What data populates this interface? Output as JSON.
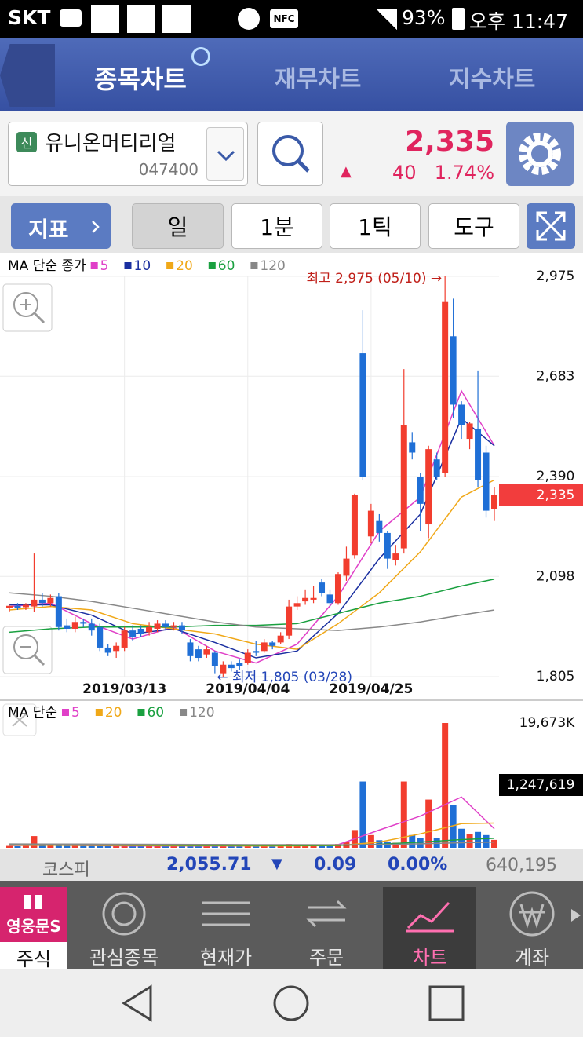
{
  "status_bar": {
    "carrier": "SKT",
    "nfc": "NFC",
    "battery": "93%",
    "time": "오후 11:47"
  },
  "tabs": [
    "종목차트",
    "재무차트",
    "지수차트"
  ],
  "stock": {
    "badge": "신",
    "name": "유니온머티리얼",
    "code": "047400",
    "price": "2,335",
    "direction": "▲",
    "change": "40",
    "change_rate": "1.74%"
  },
  "toolbar": {
    "indicator": "지표",
    "period": [
      "일",
      "1분",
      "1틱",
      "도구"
    ]
  },
  "chart_data": [
    {
      "type": "candlestick",
      "legend_title": "MA 단순 종가",
      "categories": [
        null,
        null,
        null,
        null,
        null,
        null,
        null,
        null,
        null,
        null,
        null,
        null,
        null,
        null,
        "2019/03/13",
        null,
        null,
        null,
        null,
        null,
        null,
        null,
        null,
        null,
        null,
        null,
        null,
        null,
        null,
        "2019/04/04",
        null,
        null,
        null,
        null,
        null,
        null,
        null,
        null,
        null,
        null,
        null,
        null,
        null,
        null,
        "2019/04/25",
        null,
        null,
        null,
        null,
        null,
        null,
        null,
        null,
        null,
        null,
        null,
        null,
        null,
        null,
        null
      ],
      "open": [
        2005,
        2012,
        2008,
        2010,
        2030,
        2020,
        2040,
        1955,
        1945,
        1965,
        1960,
        1950,
        1890,
        1880,
        1890,
        1940,
        1945,
        1935,
        1945,
        1960,
        1950,
        1955,
        1905,
        1885,
        1870,
        1875,
        1815,
        1840,
        1845,
        1845,
        1880,
        1880,
        1905,
        1905,
        1925,
        2010,
        2025,
        2030,
        2080,
        2045,
        2020,
        2100,
        2160,
        2750,
        2215,
        2260,
        2225,
        2145,
        2180,
        2490,
        2390,
        2250,
        2440,
        2400,
        2800,
        2600,
        2500,
        2530,
        2460,
        2295
      ],
      "high": [
        2015,
        2020,
        2020,
        2165,
        2050,
        2045,
        2050,
        1975,
        1980,
        1975,
        1975,
        1960,
        1900,
        1905,
        1950,
        1955,
        1955,
        1965,
        1970,
        1970,
        1965,
        1965,
        1915,
        1895,
        1895,
        1880,
        1850,
        1850,
        1855,
        1885,
        1910,
        1915,
        1910,
        1935,
        2030,
        2040,
        2060,
        2070,
        2090,
        2060,
        2110,
        2185,
        2340,
        2876,
        2310,
        2280,
        2230,
        2190,
        2704,
        2520,
        2400,
        2480,
        2460,
        2975,
        2910,
        2610,
        2550,
        2700,
        2480,
        2360
      ],
      "low": [
        1995,
        2000,
        2000,
        1995,
        2010,
        2010,
        1940,
        1935,
        1935,
        1950,
        1925,
        1880,
        1865,
        1860,
        1880,
        1910,
        1920,
        1925,
        1935,
        1940,
        1940,
        1930,
        1850,
        1850,
        1860,
        1815,
        1805,
        1820,
        1825,
        1840,
        1865,
        1875,
        1885,
        1900,
        1915,
        2000,
        2015,
        2020,
        2040,
        2010,
        2015,
        2085,
        2150,
        2380,
        2195,
        2200,
        2120,
        2130,
        2165,
        2440,
        2230,
        2210,
        2380,
        2390,
        2560,
        2500,
        2470,
        2360,
        2270,
        2260
      ],
      "close": [
        2012,
        2005,
        2015,
        2030,
        2020,
        2035,
        1950,
        1945,
        1965,
        1960,
        1940,
        1890,
        1875,
        1895,
        1940,
        1920,
        1930,
        1950,
        1960,
        1950,
        1955,
        1940,
        1865,
        1860,
        1885,
        1835,
        1840,
        1830,
        1835,
        1875,
        1875,
        1905,
        1895,
        1925,
        2010,
        2020,
        2035,
        2035,
        2050,
        2020,
        2105,
        2150,
        2335,
        2390,
        2290,
        2225,
        2150,
        2165,
        2540,
        2460,
        2310,
        2470,
        2390,
        2900,
        2600,
        2540,
        2545,
        2380,
        2290,
        2335
      ],
      "up_color": "#f23d2e",
      "down_color": "#1f6fd6",
      "ma_x": [
        0,
        5,
        10,
        15,
        20,
        25,
        30,
        35,
        40,
        45,
        50,
        55,
        59
      ],
      "ma": [
        {
          "name": "5",
          "color": "#e040c8",
          "values": [
            2010,
            2020,
            1960,
            1915,
            1950,
            1880,
            1845,
            1900,
            2040,
            2230,
            2330,
            2640,
            2480
          ]
        },
        {
          "name": "10",
          "color": "#1a2fa0",
          "values": [
            2015,
            2015,
            1985,
            1930,
            1945,
            1905,
            1860,
            1880,
            1990,
            2150,
            2280,
            2560,
            2480
          ]
        },
        {
          "name": "20",
          "color": "#f0a818",
          "values": [
            2000,
            2010,
            2000,
            1960,
            1945,
            1930,
            1900,
            1885,
            1960,
            2050,
            2170,
            2330,
            2380
          ]
        },
        {
          "name": "60",
          "color": "#1aa040",
          "values": [
            1935,
            1945,
            1950,
            1950,
            1950,
            1955,
            1955,
            1960,
            1990,
            2020,
            2040,
            2070,
            2090
          ]
        },
        {
          "name": "120",
          "color": "#888888",
          "values": [
            2050,
            2040,
            2025,
            2005,
            1985,
            1965,
            1950,
            1945,
            1940,
            1950,
            1965,
            1985,
            2000
          ]
        }
      ],
      "ylim": [
        1805,
        2975
      ],
      "yticks": [
        {
          "value": 1805,
          "label": "1,805"
        },
        {
          "value": 2098,
          "label": "2,098"
        },
        {
          "value": 2390,
          "label": "2,390"
        },
        {
          "value": 2683,
          "label": "2,683"
        },
        {
          "value": 2975,
          "label": "2,975"
        }
      ],
      "grid": true,
      "last_price": {
        "value": 2335,
        "label": "2,335"
      },
      "annotations": {
        "high": "최고 2,975 (05/10) →",
        "low": "← 최저 1,805 (03/28)"
      }
    },
    {
      "type": "bar",
      "legend_title": "MA 단순",
      "values": [
        300,
        250,
        350,
        1844,
        400,
        350,
        600,
        300,
        350,
        300,
        300,
        500,
        400,
        350,
        450,
        300,
        300,
        350,
        300,
        250,
        250,
        300,
        450,
        350,
        300,
        400,
        500,
        350,
        300,
        450,
        350,
        400,
        300,
        350,
        600,
        450,
        400,
        400,
        500,
        350,
        600,
        900,
        2800,
        10450,
        2000,
        1200,
        1000,
        800,
        10450,
        2000,
        1600,
        7600,
        1500,
        19673,
        6700,
        3000,
        2200,
        2500,
        2000,
        1247.619
      ],
      "ma_x": [
        0,
        5,
        10,
        15,
        20,
        25,
        30,
        35,
        40,
        45,
        50,
        55,
        59
      ],
      "ma": [
        {
          "name": "5",
          "color": "#e040c8",
          "values": [
            350,
            400,
            350,
            300,
            300,
            300,
            300,
            350,
            500,
            2800,
            5000,
            8000,
            3000
          ]
        },
        {
          "name": "20",
          "color": "#f0a818",
          "values": [
            400,
            400,
            380,
            350,
            320,
            320,
            300,
            300,
            350,
            900,
            2200,
            3800,
            3900
          ]
        },
        {
          "name": "60",
          "color": "#1aa040",
          "values": [
            450,
            450,
            440,
            420,
            400,
            390,
            380,
            370,
            380,
            550,
            900,
            1300,
            1500
          ]
        },
        {
          "name": "120",
          "color": "#888888",
          "values": [
            600,
            590,
            580,
            560,
            540,
            520,
            500,
            490,
            480,
            520,
            640,
            800,
            900
          ]
        }
      ],
      "ylim": [
        0,
        19673
      ],
      "yticks": [
        {
          "value": 19673,
          "label": "19,673K"
        }
      ],
      "last_volume": {
        "value": 1247.619,
        "label": "1,247,619"
      }
    }
  ],
  "index_bar": {
    "name": "코스피",
    "value": "2,055.71",
    "direction": "▼",
    "change": "0.09",
    "change_rate": "0.00%",
    "volume": "640,195"
  },
  "bottom_nav": {
    "logo": "영웅문S",
    "items": [
      "주식",
      "관심종목",
      "현재가",
      "주문",
      "차트",
      "계좌"
    ]
  }
}
